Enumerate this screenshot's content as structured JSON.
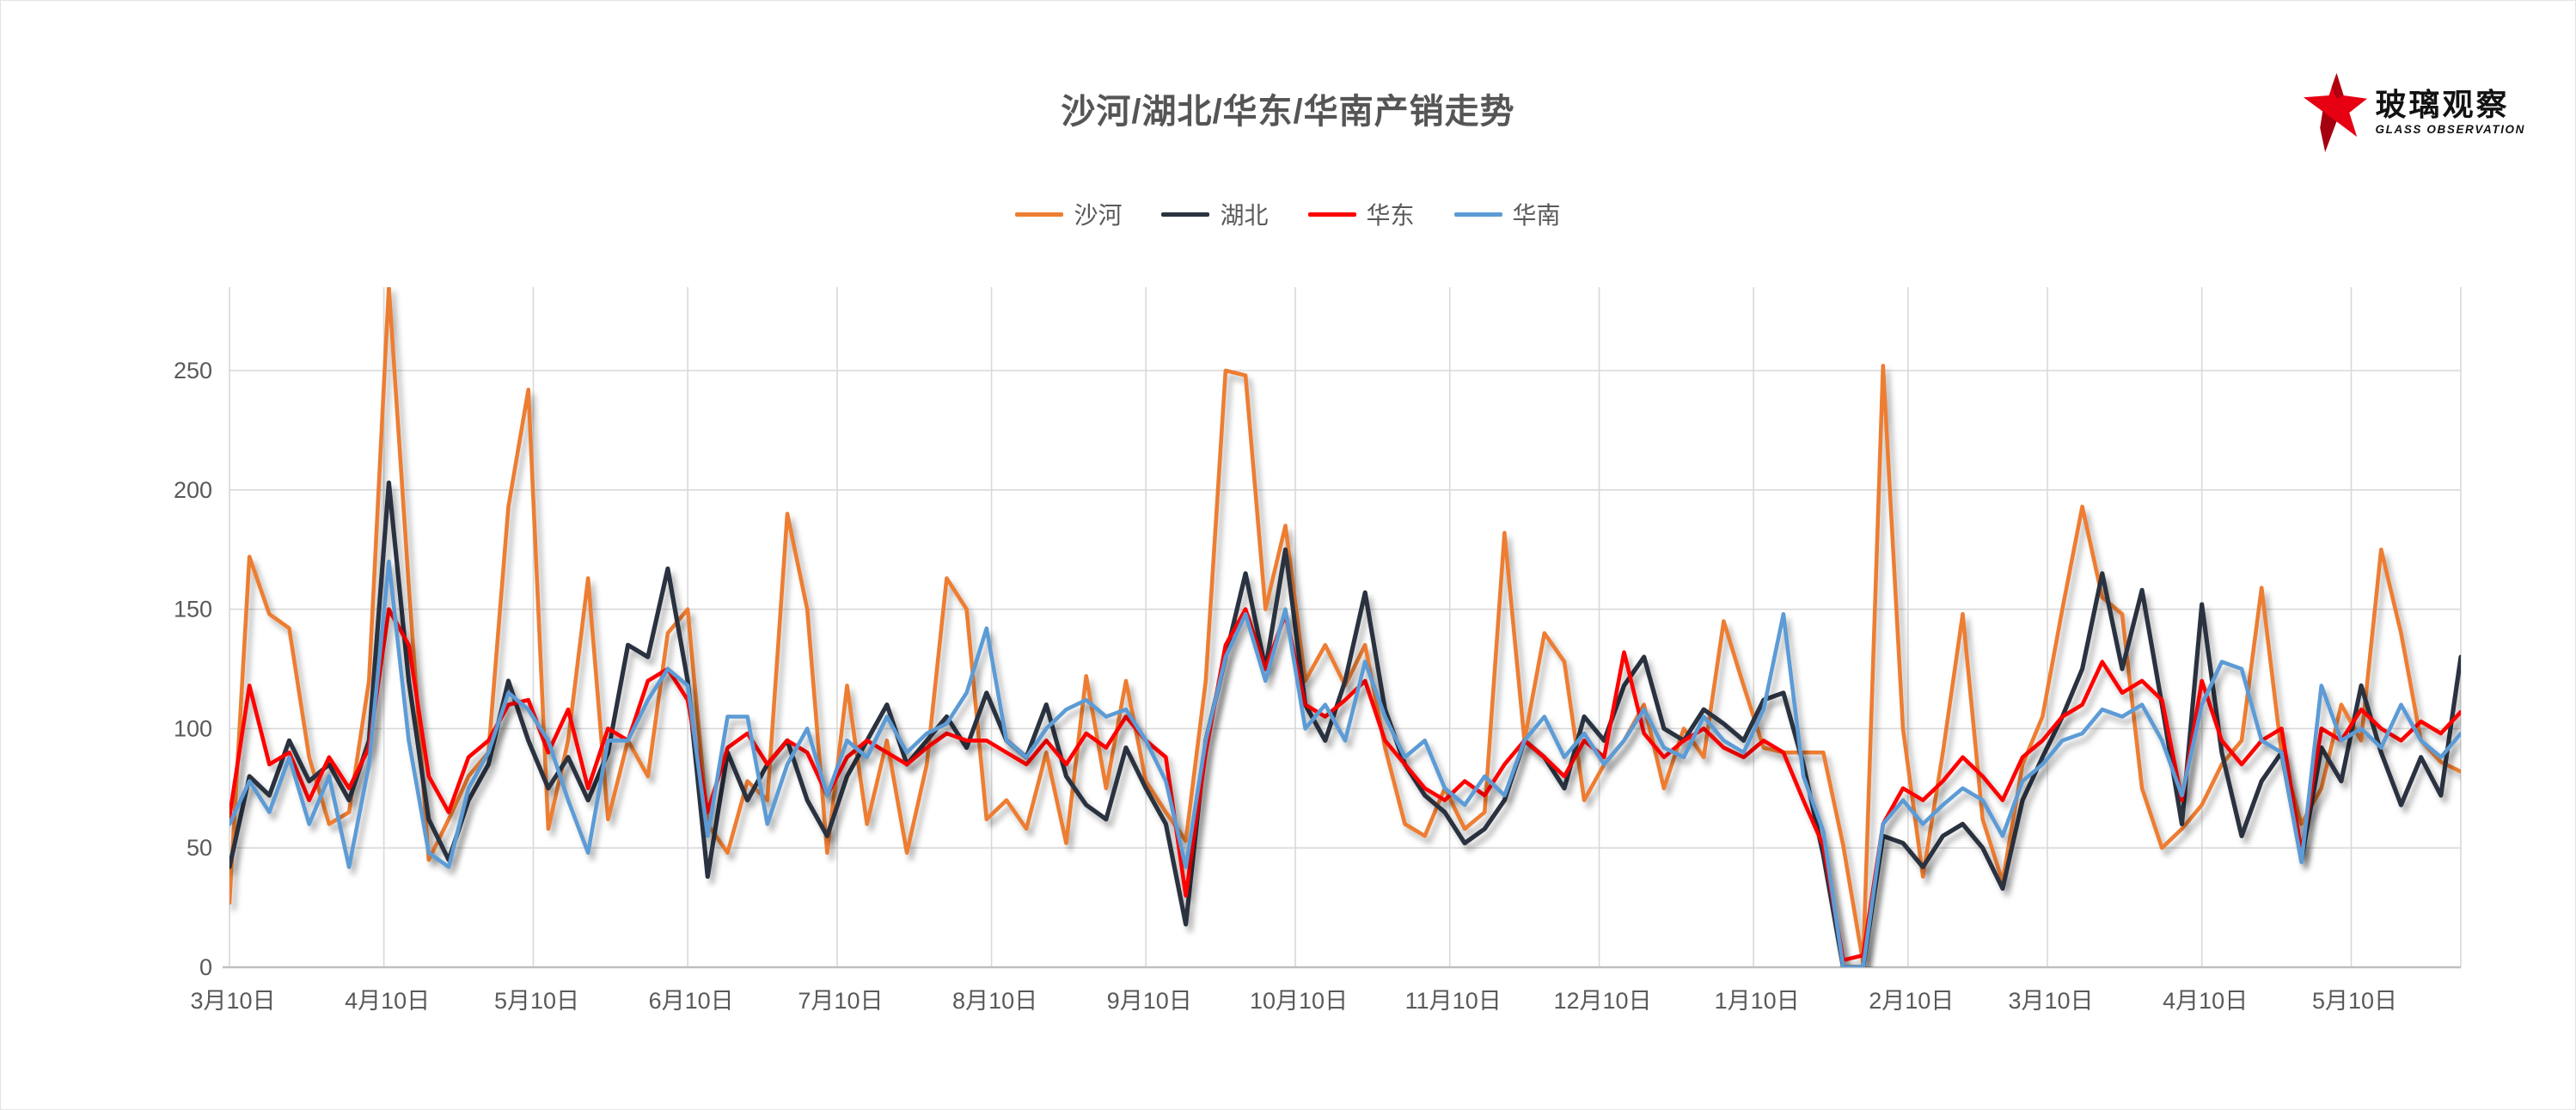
{
  "title": "沙河/湖北/华东/华南产销走势",
  "logo": {
    "cn": "玻璃观察",
    "en": "GLASS OBSERVATION"
  },
  "chart_data": {
    "type": "line",
    "title": "沙河/湖北/华东/华南产销走势",
    "xlabel": "",
    "ylabel": "",
    "grid": true,
    "legend_position": "top",
    "ylim": [
      0,
      285
    ],
    "y_ticks": [
      0,
      50,
      100,
      150,
      200,
      250
    ],
    "x_step_days": 4,
    "x_max_days": 448,
    "x_tick_day_offsets": [
      0,
      31,
      61,
      92,
      122,
      153,
      184,
      214,
      245,
      275,
      306,
      337,
      365,
      396,
      426
    ],
    "x_tick_labels": [
      "3月10日",
      "4月10日",
      "5月10日",
      "6月10日",
      "7月10日",
      "8月10日",
      "9月10日",
      "10月10日",
      "11月10日",
      "12月10日",
      "1月10日",
      "2月10日",
      "3月10日",
      "4月10日",
      "5月10日"
    ],
    "axis_color": "#bfbfbf",
    "grid_color": "#d9d9d9",
    "tick_label_color": "#595959",
    "series": [
      {
        "name": "沙河",
        "key": "shahe",
        "color": "#ED7D31",
        "values": [
          27,
          172,
          148,
          142,
          88,
          60,
          65,
          120,
          285,
          160,
          45,
          62,
          80,
          90,
          193,
          242,
          58,
          95,
          163,
          62,
          95,
          80,
          140,
          150,
          60,
          48,
          78,
          70,
          190,
          150,
          48,
          118,
          60,
          95,
          48,
          85,
          163,
          150,
          62,
          70,
          58,
          90,
          52,
          122,
          75,
          120,
          78,
          65,
          53,
          120,
          250,
          248,
          150,
          185,
          120,
          135,
          118,
          135,
          92,
          60,
          55,
          75,
          58,
          65,
          182,
          95,
          140,
          128,
          70,
          85,
          95,
          110,
          75,
          100,
          88,
          145,
          118,
          92,
          90,
          90,
          90,
          51,
          2,
          252,
          100,
          38,
          90,
          148,
          62,
          36,
          85,
          105,
          150,
          193,
          155,
          148,
          75,
          50,
          58,
          68,
          85,
          95,
          159,
          90,
          60,
          75,
          110,
          95,
          175,
          140,
          95,
          86,
          82
        ]
      },
      {
        "name": "湖北",
        "key": "hubei",
        "color": "#2B3340",
        "values": [
          42,
          80,
          72,
          95,
          78,
          85,
          70,
          95,
          203,
          120,
          62,
          45,
          70,
          85,
          120,
          95,
          75,
          88,
          70,
          90,
          135,
          130,
          167,
          120,
          38,
          90,
          70,
          85,
          95,
          70,
          55,
          80,
          95,
          110,
          85,
          95,
          105,
          92,
          115,
          95,
          88,
          110,
          80,
          68,
          62,
          92,
          75,
          60,
          18,
          95,
          130,
          165,
          125,
          175,
          110,
          95,
          120,
          157,
          108,
          85,
          72,
          65,
          52,
          58,
          70,
          95,
          88,
          75,
          105,
          95,
          118,
          130,
          100,
          95,
          108,
          102,
          95,
          112,
          115,
          85,
          47,
          0,
          0,
          55,
          52,
          42,
          55,
          60,
          50,
          33,
          70,
          88,
          105,
          125,
          165,
          125,
          158,
          110,
          60,
          152,
          90,
          55,
          78,
          90,
          45,
          92,
          78,
          118,
          90,
          68,
          88,
          72,
          130
        ]
      },
      {
        "name": "华东",
        "key": "huadong",
        "color": "#FF0000",
        "values": [
          63,
          118,
          85,
          90,
          70,
          88,
          75,
          92,
          150,
          135,
          80,
          65,
          88,
          95,
          110,
          112,
          90,
          108,
          75,
          100,
          95,
          120,
          125,
          112,
          65,
          92,
          98,
          85,
          95,
          90,
          72,
          88,
          95,
          90,
          85,
          92,
          98,
          95,
          95,
          90,
          85,
          95,
          85,
          98,
          92,
          105,
          95,
          88,
          30,
          90,
          135,
          150,
          125,
          148,
          110,
          105,
          112,
          120,
          95,
          85,
          75,
          70,
          78,
          72,
          85,
          95,
          88,
          80,
          95,
          88,
          132,
          98,
          88,
          95,
          100,
          92,
          88,
          95,
          90,
          70,
          51,
          3,
          5,
          60,
          75,
          70,
          78,
          88,
          80,
          70,
          88,
          95,
          105,
          110,
          128,
          115,
          120,
          112,
          70,
          120,
          95,
          85,
          95,
          100,
          48,
          100,
          95,
          108,
          100,
          95,
          103,
          98,
          107
        ]
      },
      {
        "name": "华南",
        "key": "huanan",
        "color": "#5B9BD5",
        "values": [
          60,
          78,
          65,
          88,
          60,
          80,
          42,
          85,
          170,
          95,
          48,
          42,
          75,
          90,
          115,
          108,
          95,
          70,
          48,
          95,
          95,
          112,
          125,
          118,
          55,
          105,
          105,
          60,
          85,
          100,
          72,
          95,
          88,
          105,
          90,
          98,
          102,
          115,
          142,
          95,
          88,
          100,
          108,
          112,
          105,
          108,
          95,
          78,
          42,
          95,
          130,
          148,
          120,
          150,
          100,
          110,
          95,
          128,
          105,
          88,
          95,
          75,
          68,
          80,
          72,
          95,
          105,
          88,
          98,
          85,
          95,
          108,
          92,
          88,
          105,
          95,
          90,
          108,
          148,
          80,
          57,
          0,
          0,
          60,
          70,
          60,
          68,
          75,
          70,
          55,
          78,
          85,
          95,
          98,
          108,
          105,
          110,
          95,
          72,
          110,
          128,
          125,
          95,
          90,
          44,
          118,
          95,
          100,
          92,
          110,
          95,
          88,
          98
        ]
      }
    ]
  }
}
